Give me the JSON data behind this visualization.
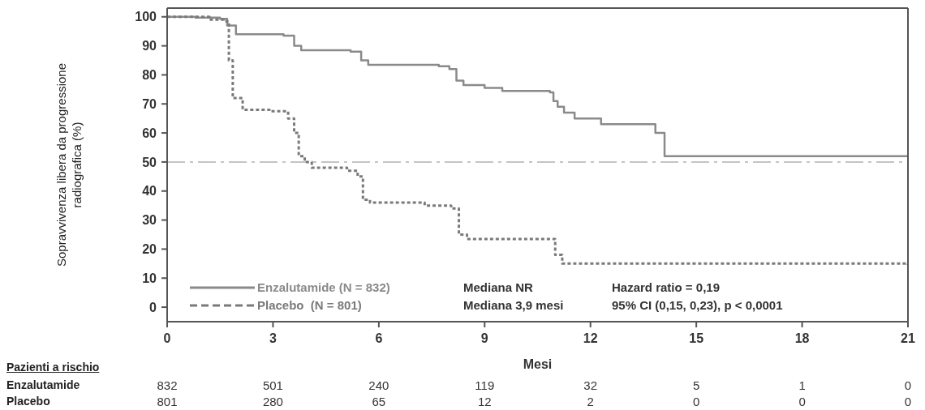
{
  "chart_data": {
    "type": "step",
    "xlabel": "Mesi",
    "ylabel": "Sopravvivenza libera da progressione radiografica (%)",
    "xlim": [
      0,
      21
    ],
    "xticks": [
      0,
      3,
      6,
      9,
      12,
      15,
      18,
      21
    ],
    "ylim": [
      -5,
      103
    ],
    "yticks": [
      0,
      10,
      20,
      30,
      40,
      50,
      60,
      70,
      80,
      90,
      100
    ],
    "legend": "bottom left",
    "series": [
      {
        "name": "Enzalutamide (N = 832)",
        "color": "#8a8a8a",
        "line_style": "solid",
        "x": [
          0,
          0.8,
          1.5,
          1.7,
          1.95,
          3.3,
          3.6,
          3.8,
          5.2,
          5.5,
          5.7,
          7.7,
          8.0,
          8.2,
          8.4,
          9.0,
          9.5,
          10.85,
          10.95,
          11.07,
          11.25,
          11.55,
          12.3,
          13.84,
          14.1,
          21
        ],
        "values": [
          100,
          99.7,
          99.3,
          97,
          94,
          93.5,
          90,
          88.5,
          88,
          85,
          83.5,
          83,
          82,
          78,
          76.5,
          75.5,
          74.5,
          74,
          71,
          69,
          67,
          65,
          63,
          60,
          52,
          52
        ]
      },
      {
        "name": "Placebo  (N = 801)",
        "color": "#7a7a7a",
        "line_style": "dotted",
        "x": [
          0,
          1.2,
          1.6,
          1.75,
          1.86,
          2.14,
          2.9,
          3.43,
          3.6,
          3.73,
          3.9,
          4.1,
          5.1,
          5.4,
          5.55,
          5.75,
          7.3,
          8.05,
          8.27,
          8.5,
          10.85,
          11.0,
          11.2,
          21
        ],
        "values": [
          100,
          99,
          98.5,
          85,
          72,
          68,
          67.5,
          65,
          60,
          52,
          50,
          48,
          47,
          45,
          37,
          36,
          35,
          34,
          25,
          23.5,
          23.5,
          18,
          15,
          14.5
        ]
      }
    ],
    "ref_lines": [
      {
        "axis": "y",
        "value": 50,
        "color": "#c4c4c4",
        "line_style": "dashed"
      }
    ],
    "annotations": [
      "Mediana NR",
      "Mediana 3,9 mesi",
      "Hazard ratio = 0,19",
      "95% CI (0,15, 0,23), p < 0,0001",
      "Pazienti a rischio",
      "Enzalutamide",
      "Placebo",
      "832",
      "501",
      "240",
      "119",
      "32",
      "5",
      "1",
      "0",
      "801",
      "280",
      "65",
      "12",
      "2",
      "0",
      "0",
      "0"
    ]
  }
}
